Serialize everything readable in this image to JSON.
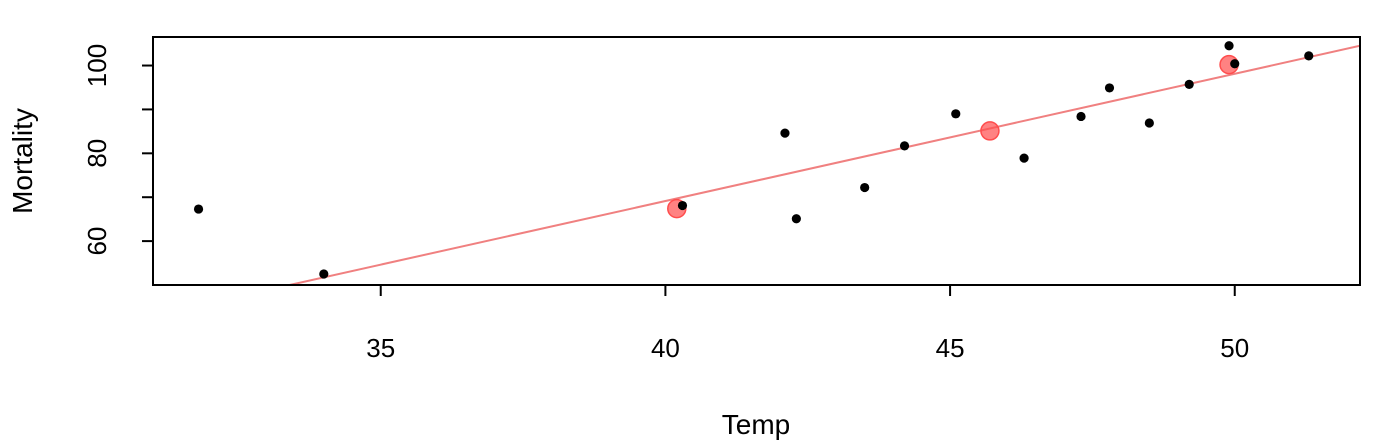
{
  "chart_data": {
    "type": "scatter",
    "title": "",
    "xlabel": "Temp",
    "ylabel": "Mortality",
    "xlim": [
      31.0,
      52.2
    ],
    "ylim": [
      50.0,
      106.5
    ],
    "xticks": [
      35,
      40,
      45,
      50
    ],
    "yticks": [
      60,
      80,
      100
    ],
    "grid": false,
    "series": [
      {
        "color": "#000000",
        "points": [
          {
            "x": 31.8,
            "y": 67.3
          },
          {
            "x": 34.0,
            "y": 52.5
          },
          {
            "x": 40.3,
            "y": 68.1
          },
          {
            "x": 42.1,
            "y": 84.6
          },
          {
            "x": 42.3,
            "y": 65.1
          },
          {
            "x": 43.5,
            "y": 72.2
          },
          {
            "x": 44.2,
            "y": 81.7
          },
          {
            "x": 45.1,
            "y": 89.0
          },
          {
            "x": 46.3,
            "y": 78.9
          },
          {
            "x": 47.3,
            "y": 88.4
          },
          {
            "x": 47.8,
            "y": 94.9
          },
          {
            "x": 48.5,
            "y": 86.9
          },
          {
            "x": 49.2,
            "y": 95.7
          },
          {
            "x": 49.9,
            "y": 104.5
          },
          {
            "x": 50.0,
            "y": 100.4
          },
          {
            "x": 51.3,
            "y": 102.2
          }
        ]
      },
      {
        "color": "#ff4d4d",
        "points": [
          {
            "x": 40.2,
            "y": 67.4
          },
          {
            "x": 45.7,
            "y": 85.1
          },
          {
            "x": 49.9,
            "y": 100.2
          }
        ]
      }
    ],
    "fit_line": {
      "color": "#f08080",
      "points": [
        {
          "x": 33.4,
          "y": 50.0
        },
        {
          "x": 52.2,
          "y": 104.5
        }
      ]
    }
  }
}
